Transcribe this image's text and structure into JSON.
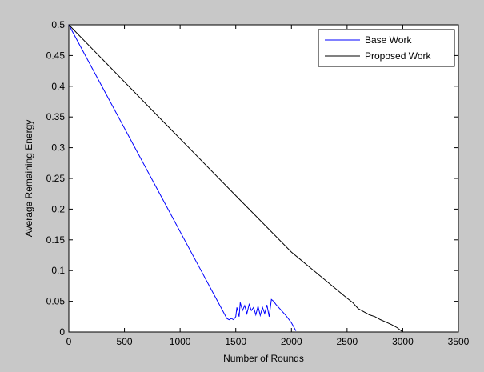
{
  "chart_data": {
    "type": "line",
    "title": "",
    "xlabel": "Number of Rounds",
    "ylabel": "Average Remaining Energy",
    "xlim": [
      0,
      3500
    ],
    "ylim": [
      0,
      0.5
    ],
    "xticks": [
      0,
      500,
      1000,
      1500,
      2000,
      2500,
      3000,
      3500
    ],
    "xtick_labels": [
      "0",
      "500",
      "1000",
      "1500",
      "2000",
      "2500",
      "3000",
      "3500"
    ],
    "yticks": [
      0,
      0.05,
      0.1,
      0.15,
      0.2,
      0.25,
      0.3,
      0.35,
      0.4,
      0.45,
      0.5
    ],
    "ytick_labels": [
      "0",
      "0.05",
      "0.1",
      "0.15",
      "0.2",
      "0.25",
      "0.3",
      "0.35",
      "0.4",
      "0.45",
      "0.5"
    ],
    "grid": false,
    "legend_position": "top-right",
    "series": [
      {
        "name": "Base Work",
        "color": "#0000ff",
        "x": [
          0,
          1420,
          1440,
          1460,
          1480,
          1500,
          1510,
          1530,
          1540,
          1560,
          1580,
          1600,
          1620,
          1640,
          1660,
          1680,
          1700,
          1720,
          1740,
          1760,
          1780,
          1800,
          1820,
          1840,
          1860,
          1900,
          1950,
          2000,
          2040
        ],
        "y": [
          0.5,
          0.022,
          0.02,
          0.022,
          0.02,
          0.025,
          0.04,
          0.025,
          0.048,
          0.035,
          0.043,
          0.03,
          0.045,
          0.035,
          0.04,
          0.028,
          0.042,
          0.027,
          0.04,
          0.03,
          0.044,
          0.025,
          0.053,
          0.05,
          0.045,
          0.037,
          0.027,
          0.015,
          0.002
        ]
      },
      {
        "name": "Proposed Work",
        "color": "#000000",
        "x": [
          0,
          700,
          1500,
          2000,
          2500,
          2550,
          2600,
          2650,
          2700,
          2750,
          2800,
          2850,
          2900,
          2950,
          3000
        ],
        "y": [
          0.5,
          0.37,
          0.222,
          0.13,
          0.055,
          0.048,
          0.038,
          0.033,
          0.028,
          0.025,
          0.02,
          0.016,
          0.012,
          0.007,
          0.0
        ]
      }
    ]
  }
}
